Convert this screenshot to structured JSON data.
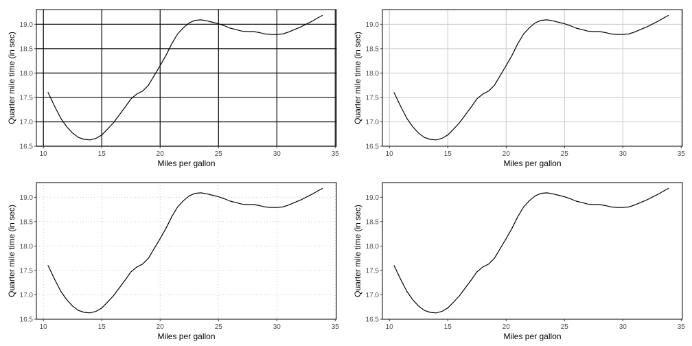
{
  "colors": {
    "line": "#000000",
    "frame": "#000000",
    "tick_text": "#4d4d4d"
  },
  "chart_data": [
    {
      "type": "line",
      "grid": "major lines, black, solid",
      "xlabel": "Miles per gallon",
      "ylabel": "Quarter mile time (in sec)",
      "xlim": [
        9.4,
        35.1
      ],
      "ylim": [
        16.5,
        19.3
      ],
      "xticks": [
        "10",
        "15",
        "20",
        "25",
        "30",
        "35"
      ],
      "yticks": [
        "16.5",
        "17.0",
        "17.5",
        "18.0",
        "18.5",
        "19.0"
      ],
      "series": [
        {
          "x": [
            10.4,
            11.0,
            11.5,
            12.0,
            12.5,
            13.0,
            13.5,
            14.0,
            14.5,
            15.0,
            15.5,
            16.0,
            16.5,
            17.0,
            17.5,
            18.0,
            18.5,
            19.0,
            19.5,
            20.0,
            20.5,
            21.0,
            21.5,
            22.0,
            22.5,
            23.0,
            23.5,
            24.0,
            24.5,
            25.0,
            25.5,
            26.0,
            26.5,
            27.0,
            27.5,
            28.0,
            28.5,
            29.0,
            29.5,
            30.0,
            30.5,
            31.0,
            31.5,
            32.0,
            32.5,
            33.0,
            33.5,
            33.9
          ],
          "y": [
            17.6,
            17.3,
            17.07,
            16.9,
            16.77,
            16.68,
            16.64,
            16.63,
            16.66,
            16.73,
            16.85,
            16.98,
            17.14,
            17.3,
            17.47,
            17.57,
            17.63,
            17.75,
            17.95,
            18.15,
            18.36,
            18.6,
            18.8,
            18.93,
            19.03,
            19.08,
            19.09,
            19.07,
            19.04,
            19.01,
            18.97,
            18.92,
            18.89,
            18.86,
            18.85,
            18.85,
            18.83,
            18.8,
            18.79,
            18.79,
            18.8,
            18.84,
            18.89,
            18.94,
            19.0,
            19.06,
            19.13,
            19.18
          ]
        }
      ]
    },
    {
      "type": "line",
      "grid": "major lines, light grey, solid",
      "xlabel": "Miles per gallon",
      "ylabel": "Quarter mile time (in sec)",
      "xlim": [
        9.4,
        35.1
      ],
      "ylim": [
        16.5,
        19.3
      ],
      "xticks": [
        "10",
        "15",
        "20",
        "25",
        "30",
        "35"
      ],
      "yticks": [
        "16.5",
        "17.0",
        "17.5",
        "18.0",
        "18.5",
        "19.0"
      ],
      "series": [
        {
          "x": [
            10.4,
            11.0,
            11.5,
            12.0,
            12.5,
            13.0,
            13.5,
            14.0,
            14.5,
            15.0,
            15.5,
            16.0,
            16.5,
            17.0,
            17.5,
            18.0,
            18.5,
            19.0,
            19.5,
            20.0,
            20.5,
            21.0,
            21.5,
            22.0,
            22.5,
            23.0,
            23.5,
            24.0,
            24.5,
            25.0,
            25.5,
            26.0,
            26.5,
            27.0,
            27.5,
            28.0,
            28.5,
            29.0,
            29.5,
            30.0,
            30.5,
            31.0,
            31.5,
            32.0,
            32.5,
            33.0,
            33.5,
            33.9
          ],
          "y": [
            17.6,
            17.3,
            17.07,
            16.9,
            16.77,
            16.68,
            16.64,
            16.63,
            16.66,
            16.73,
            16.85,
            16.98,
            17.14,
            17.3,
            17.47,
            17.57,
            17.63,
            17.75,
            17.95,
            18.15,
            18.36,
            18.6,
            18.8,
            18.93,
            19.03,
            19.08,
            19.09,
            19.07,
            19.04,
            19.01,
            18.97,
            18.92,
            18.89,
            18.86,
            18.85,
            18.85,
            18.83,
            18.8,
            18.79,
            18.79,
            18.8,
            18.84,
            18.89,
            18.94,
            19.0,
            19.06,
            19.13,
            19.18
          ]
        }
      ]
    },
    {
      "type": "line",
      "grid": "major lines, light grey, dotted",
      "xlabel": "Miles per gallon",
      "ylabel": "Quarter mile time (in sec)",
      "xlim": [
        9.4,
        35.1
      ],
      "ylim": [
        16.5,
        19.3
      ],
      "xticks": [
        "10",
        "15",
        "20",
        "25",
        "30",
        "35"
      ],
      "yticks": [
        "16.5",
        "17.0",
        "17.5",
        "18.0",
        "18.5",
        "19.0"
      ],
      "series": [
        {
          "x": [
            10.4,
            11.0,
            11.5,
            12.0,
            12.5,
            13.0,
            13.5,
            14.0,
            14.5,
            15.0,
            15.5,
            16.0,
            16.5,
            17.0,
            17.5,
            18.0,
            18.5,
            19.0,
            19.5,
            20.0,
            20.5,
            21.0,
            21.5,
            22.0,
            22.5,
            23.0,
            23.5,
            24.0,
            24.5,
            25.0,
            25.5,
            26.0,
            26.5,
            27.0,
            27.5,
            28.0,
            28.5,
            29.0,
            29.5,
            30.0,
            30.5,
            31.0,
            31.5,
            32.0,
            32.5,
            33.0,
            33.5,
            33.9
          ],
          "y": [
            17.6,
            17.3,
            17.07,
            16.9,
            16.77,
            16.68,
            16.64,
            16.63,
            16.66,
            16.73,
            16.85,
            16.98,
            17.14,
            17.3,
            17.47,
            17.57,
            17.63,
            17.75,
            17.95,
            18.15,
            18.36,
            18.6,
            18.8,
            18.93,
            19.03,
            19.08,
            19.09,
            19.07,
            19.04,
            19.01,
            18.97,
            18.92,
            18.89,
            18.86,
            18.85,
            18.85,
            18.83,
            18.8,
            18.79,
            18.79,
            18.8,
            18.84,
            18.89,
            18.94,
            19.0,
            19.06,
            19.13,
            19.18
          ]
        }
      ]
    },
    {
      "type": "line",
      "grid": "none",
      "xlabel": "Miles per gallon",
      "ylabel": "Quarter mile time (in sec)",
      "xlim": [
        9.4,
        35.1
      ],
      "ylim": [
        16.5,
        19.3
      ],
      "xticks": [
        "10",
        "15",
        "20",
        "25",
        "30",
        "35"
      ],
      "yticks": [
        "16.5",
        "17.0",
        "17.5",
        "18.0",
        "18.5",
        "19.0"
      ],
      "series": [
        {
          "x": [
            10.4,
            11.0,
            11.5,
            12.0,
            12.5,
            13.0,
            13.5,
            14.0,
            14.5,
            15.0,
            15.5,
            16.0,
            16.5,
            17.0,
            17.5,
            18.0,
            18.5,
            19.0,
            19.5,
            20.0,
            20.5,
            21.0,
            21.5,
            22.0,
            22.5,
            23.0,
            23.5,
            24.0,
            24.5,
            25.0,
            25.5,
            26.0,
            26.5,
            27.0,
            27.5,
            28.0,
            28.5,
            29.0,
            29.5,
            30.0,
            30.5,
            31.0,
            31.5,
            32.0,
            32.5,
            33.0,
            33.5,
            33.9
          ],
          "y": [
            17.6,
            17.3,
            17.07,
            16.9,
            16.77,
            16.68,
            16.64,
            16.63,
            16.66,
            16.73,
            16.85,
            16.98,
            17.14,
            17.3,
            17.47,
            17.57,
            17.63,
            17.75,
            17.95,
            18.15,
            18.36,
            18.6,
            18.8,
            18.93,
            19.03,
            19.08,
            19.09,
            19.07,
            19.04,
            19.01,
            18.97,
            18.92,
            18.89,
            18.86,
            18.85,
            18.85,
            18.83,
            18.8,
            18.79,
            18.79,
            18.8,
            18.84,
            18.89,
            18.94,
            19.0,
            19.06,
            19.13,
            19.18
          ]
        }
      ]
    }
  ]
}
